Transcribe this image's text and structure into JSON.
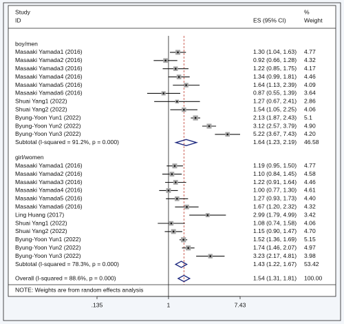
{
  "chart_data": {
    "type": "forest",
    "header": {
      "study": "Study",
      "id": "ID",
      "es": "ES (95% CI)",
      "pct": "%",
      "weight": "Weight"
    },
    "log_scale": true,
    "xlim": [
      0.135,
      7.43
    ],
    "xticks": [
      {
        "value": 0.135,
        "label": ".135"
      },
      1,
      7.43
    ],
    "null_line": 1,
    "square_color": "#a6a6a6",
    "diamond_color": "#1f2a80",
    "ref_line_color": "#c0392b",
    "groups": [
      {
        "name": "boy/men",
        "studies": [
          {
            "label": "Masaaki Yamada1 (2016)",
            "es": 1.3,
            "lo": 1.04,
            "hi": 1.63,
            "ci_label": "1.30 (1.04, 1.63)",
            "weight": 4.77
          },
          {
            "label": "Masaaki Yamada2 (2016)",
            "es": 0.92,
            "lo": 0.66,
            "hi": 1.28,
            "ci_label": "0.92 (0.66, 1.28)",
            "weight": 4.32
          },
          {
            "label": "Masaaki Yamada3 (2016)",
            "es": 1.22,
            "lo": 0.85,
            "hi": 1.75,
            "ci_label": "1.22 (0.85, 1.75)",
            "weight": 4.17
          },
          {
            "label": "Masaaki Yamada4 (2016)",
            "es": 1.34,
            "lo": 0.99,
            "hi": 1.81,
            "ci_label": "1.34 (0.99, 1.81)",
            "weight": 4.46
          },
          {
            "label": "Masaaki Yamada5 (2016)",
            "es": 1.64,
            "lo": 1.13,
            "hi": 2.39,
            "ci_label": "1.64 (1.13, 2.39)",
            "weight": 4.09
          },
          {
            "label": "Masaaki Yamada6 (2016)",
            "es": 0.87,
            "lo": 0.55,
            "hi": 1.39,
            "ci_label": "0.87 (0.55, 1.39)",
            "weight": 3.64
          },
          {
            "label": "Shuai Yang1 (2022)",
            "es": 1.27,
            "lo": 0.67,
            "hi": 2.41,
            "ci_label": "1.27 (0.67, 2.41)",
            "weight": 2.86
          },
          {
            "label": "Shuai Yang2 (2022)",
            "es": 1.54,
            "lo": 1.05,
            "hi": 2.25,
            "ci_label": "1.54 (1.05, 2.25)",
            "weight": 4.06
          },
          {
            "label": "Byung-Yoon Yun1 (2022)",
            "es": 2.13,
            "lo": 1.87,
            "hi": 2.43,
            "ci_label": "2.13 (1.87, 2.43)",
            "weight": 5.1
          },
          {
            "label": "Byung-Yoon Yun2 (2022)",
            "es": 3.12,
            "lo": 2.57,
            "hi": 3.79,
            "ci_label": "3.12 (2.57, 3.79)",
            "weight": {
              "value": 4.9,
              "label": "4.90"
            }
          },
          {
            "label": "Byung-Yoon Yun3 (2022)",
            "es": 5.22,
            "lo": 3.67,
            "hi": 7.43,
            "ci_label": "5.22 (3.67, 7.43)",
            "weight": {
              "value": 4.2,
              "label": "4.20"
            }
          }
        ],
        "subtotal": {
          "label": "Subtotal  (I-squared = 91.2%, p = 0.000)",
          "es": 1.64,
          "lo": 1.23,
          "hi": 2.19,
          "ci_label": "1.64 (1.23, 2.19)",
          "weight": 46.58
        }
      },
      {
        "name": "girl/women",
        "studies": [
          {
            "label": "Masaaki Yamada1 (2016)",
            "es": 1.19,
            "lo": 0.95,
            "hi": 1.5,
            "ci_label": "1.19 (0.95, 1.50)",
            "weight": 4.77
          },
          {
            "label": "Masaaki Yamada2 (2016)",
            "es": 1.1,
            "lo": 0.84,
            "hi": 1.45,
            "ci_label": "1.10 (0.84, 1.45)",
            "weight": 4.58
          },
          {
            "label": "Masaaki Yamada3 (2016)",
            "es": 1.22,
            "lo": 0.91,
            "hi": 1.64,
            "ci_label": "1.22 (0.91, 1.64)",
            "weight": 4.46
          },
          {
            "label": "Masaaki Yamada4 (2016)",
            "es": 1.0,
            "lo": 0.77,
            "hi": 1.3,
            "ci_label": "1.00 (0.77, 1.30)",
            "weight": 4.61
          },
          {
            "label": "Masaaki Yamada5 (2016)",
            "es": 1.27,
            "lo": 0.93,
            "hi": 1.73,
            "ci_label": "1.27 (0.93, 1.73)",
            "weight": {
              "value": 4.4,
              "label": "4.40"
            }
          },
          {
            "label": "Masaaki Yamada6 (2016)",
            "es": 1.67,
            "lo": 1.2,
            "hi": 2.32,
            "ci_label": "1.67 (1.20, 2.32)",
            "weight": 4.32
          },
          {
            "label": "Ling Huang (2017)",
            "es": 2.99,
            "lo": 1.79,
            "hi": 4.99,
            "ci_label": "2.99 (1.79, 4.99)",
            "weight": 3.42
          },
          {
            "label": "Shuai Yang1 (2022)",
            "es": 1.08,
            "lo": 0.74,
            "hi": 1.58,
            "ci_label": "1.08 (0.74, 1.58)",
            "weight": 4.06
          },
          {
            "label": "Shuai Yang2 (2022)",
            "es": 1.15,
            "lo": 0.9,
            "hi": 1.47,
            "ci_label": "1.15 (0.90, 1.47)",
            "weight": {
              "value": 4.7,
              "label": "4.70"
            }
          },
          {
            "label": "Byung-Yoon Yun1 (2022)",
            "es": 1.52,
            "lo": 1.36,
            "hi": 1.69,
            "ci_label": "1.52 (1.36, 1.69)",
            "weight": 5.15
          },
          {
            "label": "Byung-Yoon Yun2 (2022)",
            "es": 1.74,
            "lo": 1.46,
            "hi": 2.07,
            "ci_label": "1.74 (1.46, 2.07)",
            "weight": 4.97
          },
          {
            "label": "Byung-Yoon Yun3 (2022)",
            "es": 3.23,
            "lo": 2.17,
            "hi": 4.81,
            "ci_label": "3.23 (2.17, 4.81)",
            "weight": 3.98
          }
        ],
        "subtotal": {
          "label": "Subtotal  (I-squared = 78.3%, p = 0.000)",
          "es": 1.43,
          "lo": 1.22,
          "hi": 1.67,
          "ci_label": "1.43 (1.22, 1.67)",
          "weight": 53.42
        }
      }
    ],
    "overall": {
      "label": "Overall  (I-squared = 88.6%, p = 0.000)",
      "es": 1.54,
      "lo": 1.31,
      "hi": 1.81,
      "ci_label": "1.54 (1.31, 1.81)",
      "weight": {
        "value": 100,
        "label": "100.00"
      }
    },
    "note": "NOTE: Weights are from random effects analysis"
  }
}
